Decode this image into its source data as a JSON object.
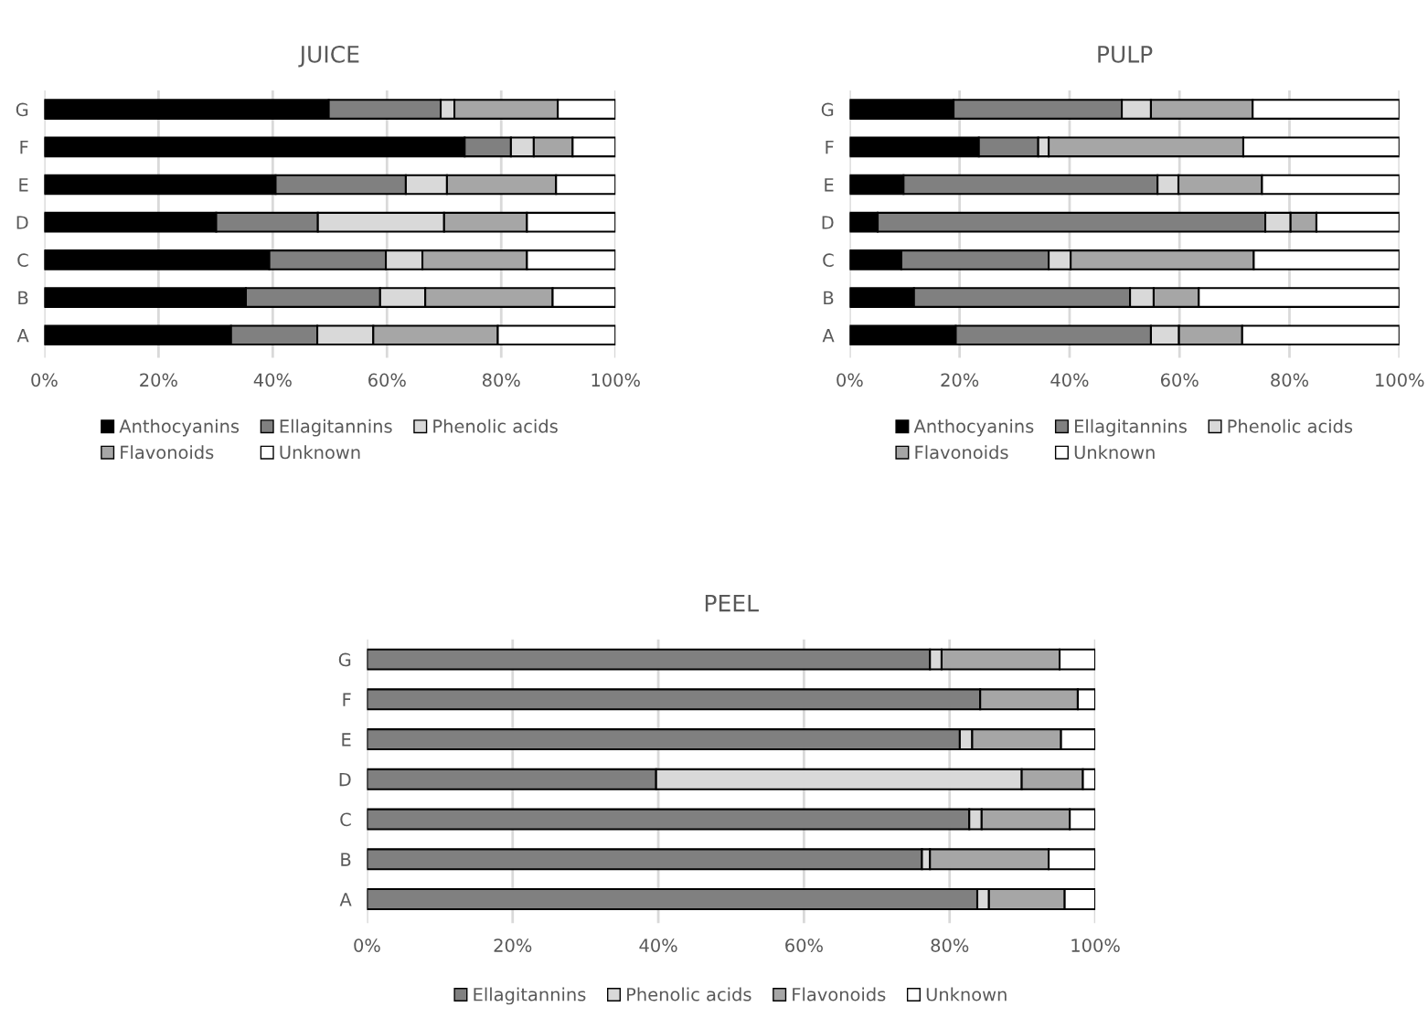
{
  "chart_data": [
    {
      "type": "bar",
      "title": "JUICE",
      "orientation": "horizontal",
      "stacked": true,
      "categories": [
        "G",
        "F",
        "E",
        "D",
        "C",
        "B",
        "A"
      ],
      "series": [
        {
          "name": "Anthocyanins",
          "color": "#000000",
          "values": [
            49.8,
            73.6,
            40.5,
            30.1,
            39.4,
            35.3,
            32.7
          ]
        },
        {
          "name": "Ellagitannins",
          "color": "#808080",
          "values": [
            19.6,
            8.1,
            22.8,
            17.8,
            20.4,
            23.5,
            15.1
          ]
        },
        {
          "name": "Phenolic acids",
          "color": "#d9d9d9",
          "values": [
            2.4,
            4.0,
            7.2,
            22.1,
            6.4,
            7.9,
            9.8
          ]
        },
        {
          "name": "Flavonoids",
          "color": "#a6a6a6",
          "values": [
            18.1,
            6.8,
            19.1,
            14.5,
            18.3,
            22.3,
            21.8
          ]
        },
        {
          "name": "Unknown",
          "color": "#ffffff",
          "values": [
            10.1,
            7.5,
            10.4,
            15.5,
            15.5,
            11.0,
            20.6
          ]
        }
      ],
      "xlim": [
        0,
        100
      ],
      "xticks": [
        {
          "value": 0,
          "label": "0%"
        },
        {
          "value": 20,
          "label": "20%"
        },
        {
          "value": 40,
          "label": "40%"
        },
        {
          "value": 60,
          "label": "60%"
        },
        {
          "value": 80,
          "label": "80%"
        },
        {
          "value": 100,
          "label": "100%"
        }
      ],
      "grid": "x",
      "legend": "bottom"
    },
    {
      "type": "bar",
      "title": "PULP",
      "orientation": "horizontal",
      "stacked": true,
      "categories": [
        "G",
        "F",
        "E",
        "D",
        "C",
        "B",
        "A"
      ],
      "series": [
        {
          "name": "Anthocyanins",
          "color": "#000000",
          "values": [
            18.9,
            23.5,
            9.8,
            5.1,
            9.4,
            11.7,
            19.3
          ]
        },
        {
          "name": "Ellagitannins",
          "color": "#808080",
          "values": [
            30.6,
            10.8,
            46.2,
            70.5,
            26.8,
            39.3,
            35.5
          ]
        },
        {
          "name": "Phenolic acids",
          "color": "#d9d9d9",
          "values": [
            5.3,
            1.9,
            3.8,
            4.6,
            4.0,
            4.3,
            5.1
          ]
        },
        {
          "name": "Flavonoids",
          "color": "#a6a6a6",
          "values": [
            18.5,
            35.4,
            15.2,
            4.7,
            33.3,
            8.2,
            11.5
          ]
        },
        {
          "name": "Unknown",
          "color": "#ffffff",
          "values": [
            26.7,
            28.4,
            25.0,
            15.1,
            26.5,
            36.5,
            28.6
          ]
        }
      ],
      "xlim": [
        0,
        100
      ],
      "xticks": [
        {
          "value": 0,
          "label": "0%"
        },
        {
          "value": 20,
          "label": "20%"
        },
        {
          "value": 40,
          "label": "40%"
        },
        {
          "value": 60,
          "label": "60%"
        },
        {
          "value": 80,
          "label": "80%"
        },
        {
          "value": 100,
          "label": "100%"
        }
      ],
      "grid": "x",
      "legend": "bottom"
    },
    {
      "type": "bar",
      "title": "PEEL",
      "orientation": "horizontal",
      "stacked": true,
      "categories": [
        "G",
        "F",
        "E",
        "D",
        "C",
        "B",
        "A"
      ],
      "series": [
        {
          "name": "Ellagitannins",
          "color": "#808080",
          "values": [
            77.3,
            84.2,
            81.4,
            39.7,
            82.7,
            76.2,
            83.8
          ]
        },
        {
          "name": "Phenolic acids",
          "color": "#d9d9d9",
          "values": [
            1.6,
            0,
            1.7,
            50.2,
            1.7,
            1.1,
            1.6
          ]
        },
        {
          "name": "Flavonoids",
          "color": "#a6a6a6",
          "values": [
            16.2,
            13.4,
            12.2,
            8.4,
            12.1,
            16.3,
            10.4
          ]
        },
        {
          "name": "Unknown",
          "color": "#ffffff",
          "values": [
            4.9,
            2.4,
            4.7,
            1.7,
            3.5,
            6.4,
            4.2
          ]
        }
      ],
      "xlim": [
        0,
        100
      ],
      "xticks": [
        {
          "value": 0,
          "label": "0%"
        },
        {
          "value": 20,
          "label": "20%"
        },
        {
          "value": 40,
          "label": "40%"
        },
        {
          "value": 60,
          "label": "60%"
        },
        {
          "value": 80,
          "label": "80%"
        },
        {
          "value": 100,
          "label": "100%"
        }
      ],
      "grid": "x",
      "legend": "bottom"
    }
  ]
}
